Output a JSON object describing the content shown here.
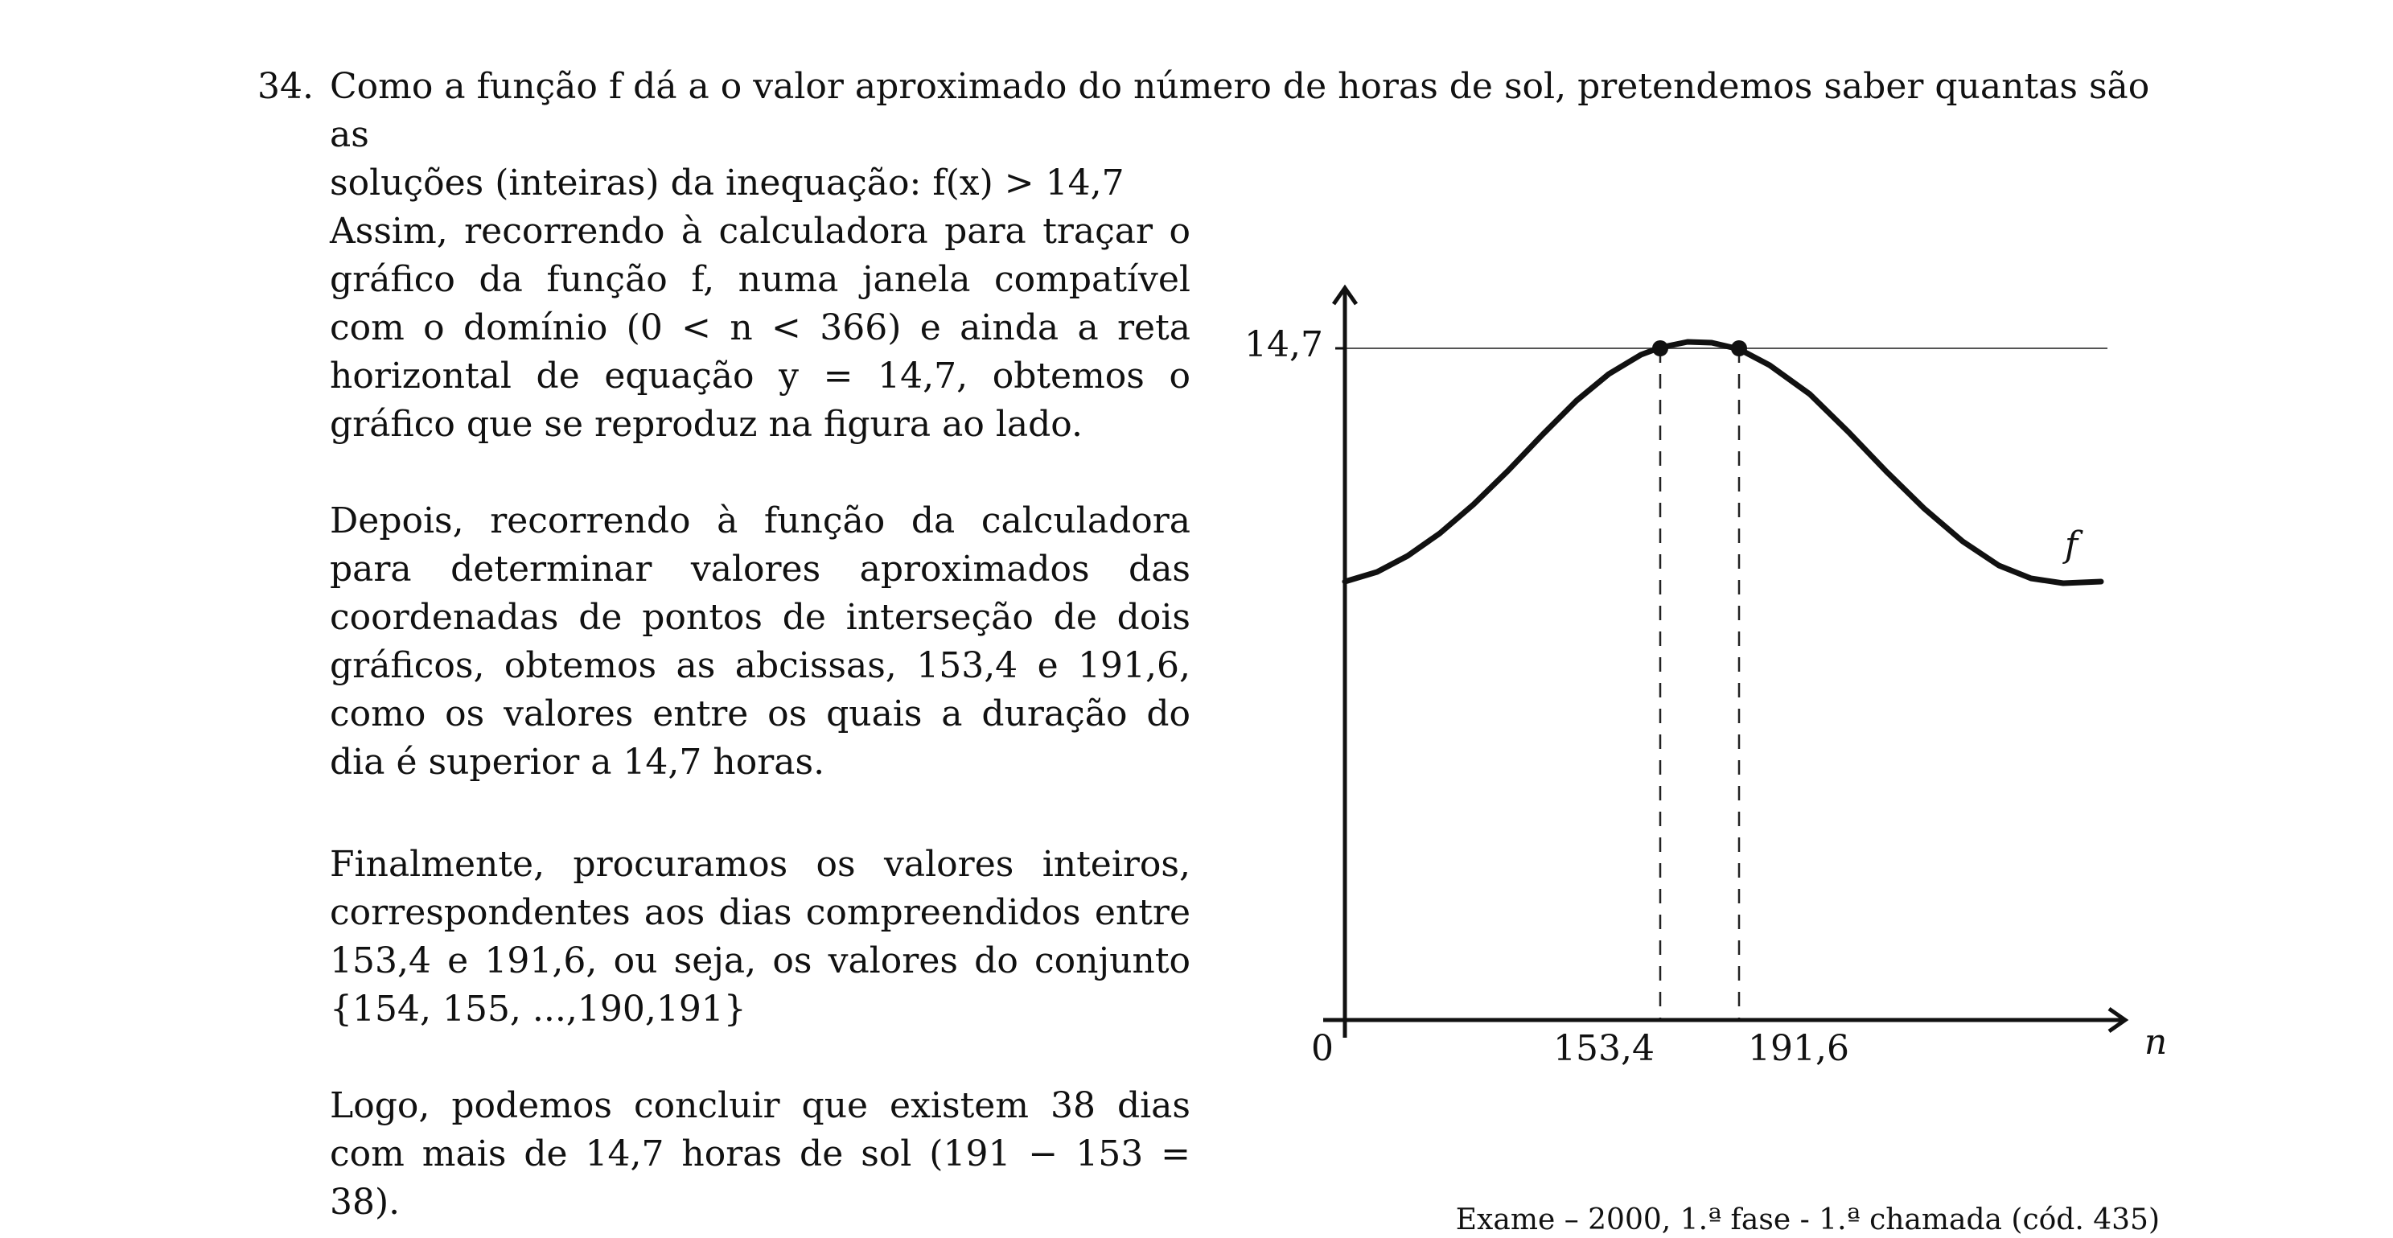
{
  "item": {
    "number": "34.",
    "intro_line1": "Como a função f dá a o valor aproximado do número de horas de sol, pretendemos saber quantas são as",
    "intro_line2": "soluções (inteiras) da inequação: f(x) > 14,7"
  },
  "paragraphs": [
    "Assim, recorrendo à calculadora para traçar o gráfico da função f, numa janela compatível com o domínio (0 < n < 366) e ainda a reta horizontal de equação y = 14,7, obtemos o gráfico que se reproduz na figura ao lado.",
    "Depois, recorrendo à função da calculadora para determinar valores aproximados das coordenadas de pontos de interseção de dois gráficos, obtemos as abcissas, 153,4 e 191,6, como os valores entre os quais a duração do dia é superior a 14,7 horas.",
    "Finalmente, procuramos os valores inteiros, correspondentes aos dias compreendidos entre 153,4 e 191,6, ou seja, os valores do conjunto {154, 155, ...,190,191}",
    "Logo, podemos concluir que existem 38 dias com mais de 14,7 horas de sol (191 − 153 = 38)."
  ],
  "source": "Exame – 2000, 1.ª fase - 1.ª chamada (cód. 435)",
  "graph": {
    "origin_label": "0",
    "y_tick_label": "14,7",
    "x_tick_labels": [
      "153,4",
      "191,6"
    ],
    "x_axis_label": "n",
    "curve_label": "f"
  }
}
